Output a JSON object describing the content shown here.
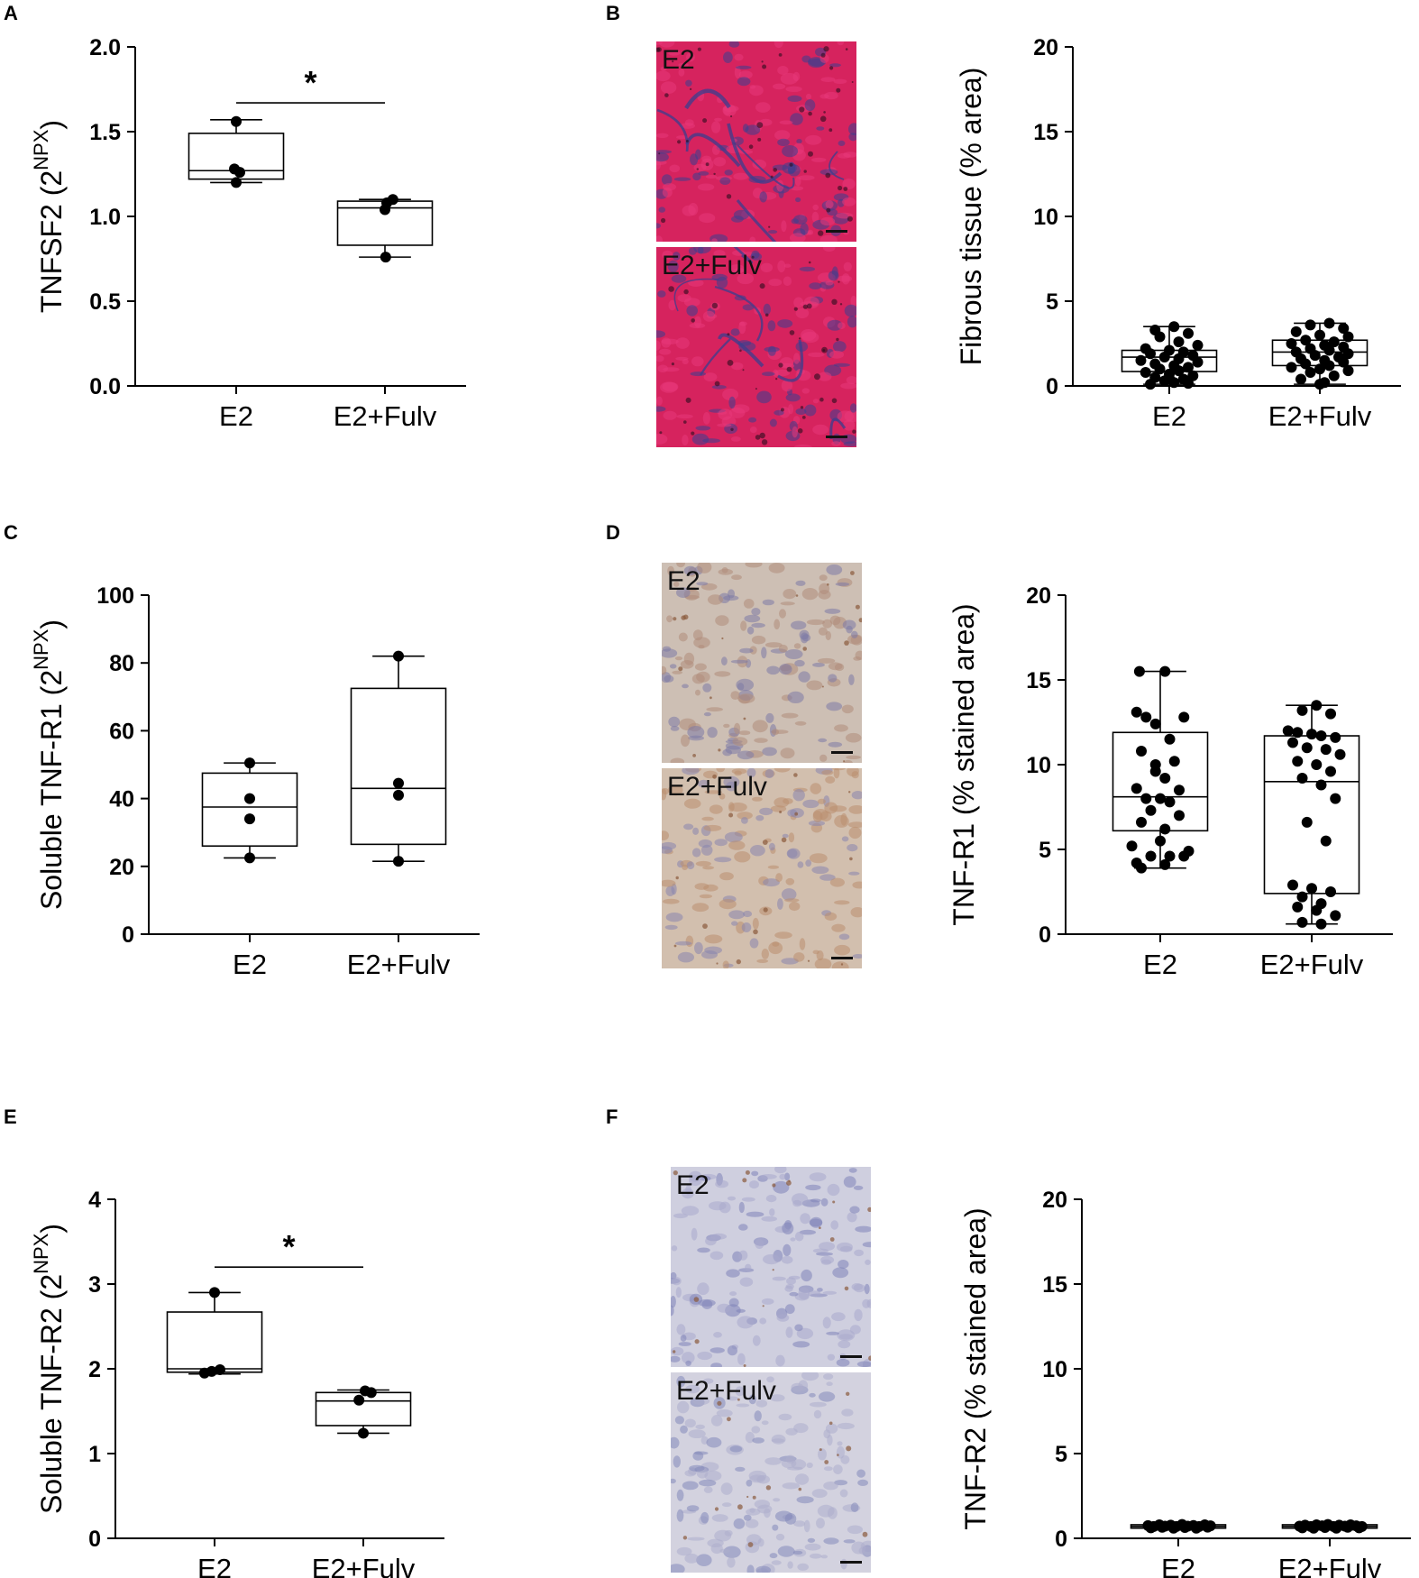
{
  "panels": [
    {
      "letter": "A"
    },
    {
      "letter": "B"
    },
    {
      "letter": "C"
    },
    {
      "letter": "D"
    },
    {
      "letter": "E"
    },
    {
      "letter": "F"
    }
  ],
  "micrographs": [
    {
      "panel": "B",
      "label": "E2",
      "stain": "trichrome",
      "colors": [
        "#d6235e",
        "#e8397a",
        "#3a3f8f",
        "#2a0b1e"
      ]
    },
    {
      "panel": "B",
      "label": "E2+Fulv",
      "stain": "trichrome",
      "colors": [
        "#d6235e",
        "#e8397a",
        "#3a3f8f",
        "#2a0b1e"
      ]
    },
    {
      "panel": "D",
      "label": "E2",
      "stain": "ihc-tnfr1",
      "colors": [
        "#cdbfb4",
        "#b08c7a",
        "#7d7aa6",
        "#8a5a3c"
      ]
    },
    {
      "panel": "D",
      "label": "E2+Fulv",
      "stain": "ihc-tnfr1",
      "colors": [
        "#d2bfae",
        "#b98e70",
        "#8885ae",
        "#8a5a3c"
      ]
    },
    {
      "panel": "F",
      "label": "E2",
      "stain": "ihc-tnfr2",
      "colors": [
        "#cfcfdf",
        "#a9a9cc",
        "#7f84b8",
        "#8a5a3c"
      ]
    },
    {
      "panel": "F",
      "label": "E2+Fulv",
      "stain": "ihc-tnfr2",
      "colors": [
        "#d3d2df",
        "#adadcc",
        "#8388b9",
        "#8a5a3c"
      ]
    }
  ],
  "chart_data": [
    {
      "panel": "A",
      "type": "box",
      "ylabel": "TNFSF2 (2",
      "ylabel_sup": "NPX",
      "ylabel_end": ")",
      "ylim": [
        0,
        2.0
      ],
      "ticks": [
        0.0,
        0.5,
        1.0,
        1.5,
        2.0
      ],
      "tick_labels": [
        "0.0",
        "0.5",
        "1.0",
        "1.5",
        "2.0"
      ],
      "categories": [
        "E2",
        "E2+Fulv"
      ],
      "boxes": [
        {
          "min": 1.2,
          "q1": 1.22,
          "median": 1.27,
          "q3": 1.49,
          "max": 1.57
        },
        {
          "min": 0.76,
          "q1": 0.83,
          "median": 1.05,
          "q3": 1.09,
          "max": 1.1
        }
      ],
      "points": [
        [
          [
            1.0,
            1.56
          ],
          [
            0.95,
            1.28
          ],
          [
            1.1,
            1.26
          ],
          [
            1.0,
            1.2
          ]
        ],
        [
          [
            1.05,
            1.08
          ],
          [
            1.22,
            1.1
          ],
          [
            1.0,
            1.04
          ],
          [
            1.02,
            0.76
          ]
        ]
      ],
      "significance": {
        "from": 0,
        "to": 1,
        "y": 1.67,
        "label": "*"
      }
    },
    {
      "panel": "B",
      "type": "box",
      "ylabel": "Fibrous tissue (% area)",
      "ylabel_sup": "",
      "ylabel_end": "",
      "ylim": [
        0,
        20
      ],
      "ticks": [
        0,
        5,
        10,
        15,
        20
      ],
      "tick_labels": [
        "0",
        "5",
        "10",
        "15",
        "20"
      ],
      "categories": [
        "E2",
        "E2+Fulv"
      ],
      "boxes": [
        {
          "min": 0.1,
          "q1": 0.85,
          "median": 1.7,
          "q3": 2.1,
          "max": 3.5
        },
        {
          "min": 0.1,
          "q1": 1.2,
          "median": 2.0,
          "q3": 2.7,
          "max": 3.7
        }
      ],
      "points": [
        [
          [
            0.85,
            3.3
          ],
          [
            1.05,
            3.5
          ],
          [
            1.2,
            3.1
          ],
          [
            0.9,
            2.9
          ],
          [
            1.1,
            2.6
          ],
          [
            1.3,
            2.4
          ],
          [
            0.75,
            2.2
          ],
          [
            1.0,
            2.1
          ],
          [
            1.15,
            2.0
          ],
          [
            0.8,
            1.9
          ],
          [
            1.25,
            1.8
          ],
          [
            0.95,
            1.7
          ],
          [
            1.1,
            1.6
          ],
          [
            0.7,
            1.5
          ],
          [
            1.3,
            1.4
          ],
          [
            0.85,
            1.3
          ],
          [
            1.05,
            1.2
          ],
          [
            1.2,
            1.1
          ],
          [
            0.9,
            1.0
          ],
          [
            1.1,
            0.9
          ],
          [
            0.75,
            0.8
          ],
          [
            1.0,
            0.7
          ],
          [
            1.25,
            0.6
          ],
          [
            0.85,
            0.5
          ],
          [
            1.15,
            0.4
          ],
          [
            0.95,
            0.3
          ],
          [
            1.05,
            0.2
          ],
          [
            0.8,
            0.1
          ],
          [
            1.2,
            0.15
          ],
          [
            1.0,
            0.45
          ]
        ],
        [
          [
            0.9,
            3.6
          ],
          [
            1.1,
            3.7
          ],
          [
            1.25,
            3.4
          ],
          [
            0.75,
            3.2
          ],
          [
            1.0,
            3.0
          ],
          [
            1.3,
            2.9
          ],
          [
            0.85,
            2.7
          ],
          [
            1.15,
            2.6
          ],
          [
            0.7,
            2.5
          ],
          [
            1.05,
            2.4
          ],
          [
            1.25,
            2.3
          ],
          [
            0.9,
            2.2
          ],
          [
            1.1,
            2.1
          ],
          [
            0.75,
            2.0
          ],
          [
            1.3,
            1.9
          ],
          [
            0.95,
            1.8
          ],
          [
            1.2,
            1.7
          ],
          [
            0.8,
            1.6
          ],
          [
            1.05,
            1.5
          ],
          [
            1.25,
            1.4
          ],
          [
            0.85,
            1.3
          ],
          [
            1.1,
            1.2
          ],
          [
            0.7,
            1.1
          ],
          [
            1.0,
            1.0
          ],
          [
            1.3,
            0.9
          ],
          [
            0.9,
            0.8
          ],
          [
            1.15,
            0.6
          ],
          [
            0.8,
            0.4
          ],
          [
            1.05,
            0.2
          ],
          [
            1.0,
            0.1
          ]
        ]
      ],
      "significance": null
    },
    {
      "panel": "C",
      "type": "box",
      "ylabel": "Soluble TNF-R1 (2",
      "ylabel_sup": "NPX",
      "ylabel_end": ")",
      "ylim": [
        0,
        100
      ],
      "ticks": [
        0,
        20,
        40,
        60,
        80,
        100
      ],
      "tick_labels": [
        "0",
        "20",
        "40",
        "60",
        "80",
        "100"
      ],
      "categories": [
        "E2",
        "E2+Fulv"
      ],
      "boxes": [
        {
          "min": 22.5,
          "q1": 26.0,
          "median": 37.5,
          "q3": 47.5,
          "max": 50.5
        },
        {
          "min": 21.5,
          "q1": 26.5,
          "median": 43.0,
          "q3": 72.5,
          "max": 82.0
        }
      ],
      "points": [
        [
          [
            1.0,
            50.5
          ],
          [
            1.0,
            40.0
          ],
          [
            1.0,
            34.0
          ],
          [
            1.0,
            22.5
          ]
        ],
        [
          [
            1.0,
            82.0
          ],
          [
            1.0,
            44.5
          ],
          [
            1.0,
            41.0
          ],
          [
            1.0,
            21.5
          ]
        ]
      ],
      "significance": null
    },
    {
      "panel": "D",
      "type": "box",
      "ylabel": "TNF-R1 (% stained area)",
      "ylabel_sup": "",
      "ylabel_end": "",
      "ylim": [
        0,
        20
      ],
      "ticks": [
        0,
        5,
        10,
        15,
        20
      ],
      "tick_labels": [
        "0",
        "5",
        "10",
        "15",
        "20"
      ],
      "categories": [
        "E2",
        "E2+Fulv"
      ],
      "boxes": [
        {
          "min": 3.9,
          "q1": 6.1,
          "median": 8.1,
          "q3": 11.9,
          "max": 15.5
        },
        {
          "min": 0.6,
          "q1": 2.4,
          "median": 9.0,
          "q3": 11.7,
          "max": 13.5
        }
      ],
      "points": [
        [
          [
            0.78,
            15.5
          ],
          [
            1.05,
            15.5
          ],
          [
            0.75,
            13.1
          ],
          [
            0.85,
            12.8
          ],
          [
            1.25,
            12.8
          ],
          [
            0.95,
            12.4
          ],
          [
            1.1,
            11.5
          ],
          [
            0.8,
            10.8
          ],
          [
            1.15,
            10.2
          ],
          [
            0.95,
            9.6
          ],
          [
            1.05,
            9.2
          ],
          [
            0.75,
            8.6
          ],
          [
            1.2,
            8.5
          ],
          [
            0.85,
            8.0
          ],
          [
            1.0,
            8.0
          ],
          [
            1.1,
            7.8
          ],
          [
            0.9,
            7.3
          ],
          [
            1.2,
            7.0
          ],
          [
            0.8,
            6.6
          ],
          [
            1.05,
            6.2
          ],
          [
            0.7,
            5.2
          ],
          [
            1.3,
            4.9
          ],
          [
            0.9,
            4.6
          ],
          [
            1.1,
            4.6
          ],
          [
            0.75,
            4.2
          ],
          [
            1.05,
            4.1
          ],
          [
            0.8,
            3.9
          ],
          [
            1.25,
            4.6
          ],
          [
            1.0,
            5.5
          ],
          [
            0.95,
            10.0
          ]
        ],
        [
          [
            1.05,
            13.5
          ],
          [
            0.9,
            13.2
          ],
          [
            1.2,
            13.0
          ],
          [
            0.75,
            12.0
          ],
          [
            0.85,
            11.9
          ],
          [
            1.0,
            11.8
          ],
          [
            1.1,
            11.7
          ],
          [
            1.25,
            11.6
          ],
          [
            0.8,
            11.3
          ],
          [
            0.95,
            11.0
          ],
          [
            1.15,
            10.9
          ],
          [
            1.3,
            10.6
          ],
          [
            0.85,
            10.2
          ],
          [
            1.05,
            10.0
          ],
          [
            1.2,
            9.6
          ],
          [
            0.9,
            9.2
          ],
          [
            1.1,
            8.8
          ],
          [
            1.25,
            8.0
          ],
          [
            0.95,
            6.6
          ],
          [
            1.15,
            5.5
          ],
          [
            0.8,
            2.9
          ],
          [
            1.0,
            2.7
          ],
          [
            1.2,
            2.5
          ],
          [
            0.9,
            2.2
          ],
          [
            1.1,
            1.8
          ],
          [
            0.85,
            1.6
          ],
          [
            1.05,
            1.4
          ],
          [
            1.25,
            1.1
          ],
          [
            0.9,
            0.7
          ],
          [
            1.1,
            0.6
          ]
        ]
      ],
      "significance": null
    },
    {
      "panel": "E",
      "type": "box",
      "ylabel": "Soluble TNF-R2 (2",
      "ylabel_sup": "NPX",
      "ylabel_end": ")",
      "ylim": [
        0,
        4
      ],
      "ticks": [
        0,
        1,
        2,
        3,
        4
      ],
      "tick_labels": [
        "0",
        "1",
        "2",
        "3",
        "4"
      ],
      "categories": [
        "E2",
        "E2+Fulv"
      ],
      "boxes": [
        {
          "min": 1.94,
          "q1": 1.96,
          "median": 2.0,
          "q3": 2.67,
          "max": 2.9
        },
        {
          "min": 1.24,
          "q1": 1.33,
          "median": 1.62,
          "q3": 1.72,
          "max": 1.75
        }
      ],
      "points": [
        [
          [
            1.0,
            2.9
          ],
          [
            0.72,
            1.95
          ],
          [
            0.92,
            1.97
          ],
          [
            1.15,
            1.99
          ]
        ],
        [
          [
            1.05,
            1.74
          ],
          [
            1.22,
            1.72
          ],
          [
            0.88,
            1.63
          ],
          [
            1.0,
            1.24
          ]
        ]
      ],
      "significance": {
        "from": 0,
        "to": 1,
        "y": 3.2,
        "label": "*"
      }
    },
    {
      "panel": "F",
      "type": "box",
      "ylabel": "TNF-R2 (% stained area)",
      "ylabel_sup": "",
      "ylabel_end": "",
      "ylim": [
        0,
        20
      ],
      "ticks": [
        0,
        5,
        10,
        15,
        20
      ],
      "tick_labels": [
        "0",
        "5",
        "10",
        "15",
        "20"
      ],
      "categories": [
        "E2",
        "E2+Fulv"
      ],
      "boxes": [
        {
          "min": 0.5,
          "q1": 0.6,
          "median": 0.7,
          "q3": 0.8,
          "max": 0.9
        },
        {
          "min": 0.5,
          "q1": 0.6,
          "median": 0.7,
          "q3": 0.8,
          "max": 0.9
        }
      ],
      "points": [
        [
          [
            0.68,
            0.75
          ],
          [
            0.74,
            0.7
          ],
          [
            0.8,
            0.8
          ],
          [
            0.86,
            0.72
          ],
          [
            0.92,
            0.78
          ],
          [
            0.98,
            0.7
          ],
          [
            1.04,
            0.82
          ],
          [
            1.1,
            0.72
          ],
          [
            1.16,
            0.76
          ],
          [
            1.22,
            0.7
          ],
          [
            1.28,
            0.8
          ],
          [
            1.34,
            0.74
          ],
          [
            0.71,
            0.62
          ],
          [
            0.83,
            0.65
          ],
          [
            0.95,
            0.6
          ],
          [
            1.07,
            0.64
          ],
          [
            1.19,
            0.6
          ],
          [
            1.31,
            0.66
          ]
        ],
        [
          [
            0.68,
            0.72
          ],
          [
            0.74,
            0.78
          ],
          [
            0.8,
            0.7
          ],
          [
            0.86,
            0.8
          ],
          [
            0.92,
            0.74
          ],
          [
            0.98,
            0.82
          ],
          [
            1.04,
            0.7
          ],
          [
            1.1,
            0.78
          ],
          [
            1.16,
            0.72
          ],
          [
            1.22,
            0.8
          ],
          [
            1.28,
            0.74
          ],
          [
            1.34,
            0.7
          ],
          [
            0.71,
            0.62
          ],
          [
            0.83,
            0.6
          ],
          [
            0.95,
            0.64
          ],
          [
            1.07,
            0.6
          ],
          [
            1.19,
            0.65
          ],
          [
            1.31,
            0.62
          ]
        ]
      ],
      "significance": null
    }
  ]
}
